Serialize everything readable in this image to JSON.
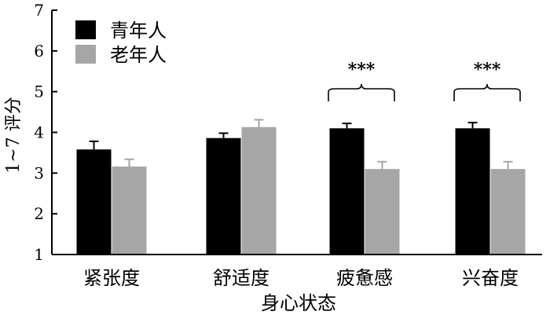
{
  "chart_data": {
    "type": "bar",
    "categories": [
      "紧张度",
      "舒适度",
      "疲惫感",
      "兴奋度"
    ],
    "series": [
      {
        "name": "青年人",
        "color": "#000000",
        "values": [
          3.58,
          3.86,
          4.1,
          4.1
        ],
        "errors": [
          0.2,
          0.12,
          0.12,
          0.14
        ]
      },
      {
        "name": "老年人",
        "color": "#a6a6a6",
        "values": [
          3.16,
          4.13,
          3.1,
          3.1
        ],
        "errors": [
          0.18,
          0.18,
          0.18,
          0.18
        ]
      }
    ],
    "xlabel": "身心状态",
    "ylabel": "1~7 评分",
    "ylim": [
      1,
      7
    ],
    "yticks": [
      "1",
      "2",
      "3",
      "4",
      "5",
      "6",
      "7"
    ],
    "grid": false,
    "legend_position": "top-left",
    "annotations": [
      {
        "category": "疲惫感",
        "text": "***"
      },
      {
        "category": "兴奋度",
        "text": "***"
      }
    ]
  }
}
